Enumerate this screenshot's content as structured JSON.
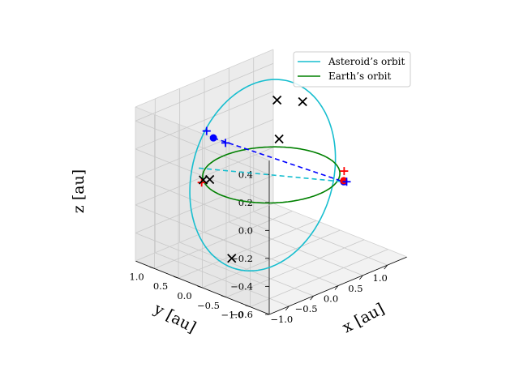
{
  "chart_data": {
    "type": "line3d",
    "title": "",
    "xlabel": "x [au]",
    "ylabel": "y [au]",
    "zlabel": "z [au]",
    "xlim": [
      -1.4,
      1.4
    ],
    "ylim": [
      -1.4,
      1.4
    ],
    "zlim": [
      -0.6,
      0.5
    ],
    "x_ticks": [
      -1.0,
      -0.5,
      0.0,
      0.5,
      1.0
    ],
    "x_tick_labels": [
      "−1.0",
      "−0.5",
      "0.0",
      "0.5",
      "1.0"
    ],
    "y_ticks": [
      -1.0,
      -0.5,
      0.0,
      0.5,
      1.0
    ],
    "y_tick_labels": [
      "−1.0",
      "−0.5",
      "0.0",
      "0.5",
      "1.0"
    ],
    "z_ticks": [
      -0.6,
      -0.4,
      -0.2,
      0.0,
      0.2,
      0.4
    ],
    "z_tick_labels": [
      "−0.6",
      "−0.4",
      "−0.2",
      "0.0",
      "0.2",
      "0.4"
    ],
    "grid": true,
    "legend_position": "top-right",
    "series": [
      {
        "name": "Asteroid’s orbit",
        "color": "#17becf",
        "kind": "ellipse",
        "a": 1.07,
        "e": 0.12,
        "inclination_deg": 28,
        "node_deg": -60,
        "periapsis_deg": 5
      },
      {
        "name": "Earth’s orbit",
        "color": "#008000",
        "kind": "circle",
        "radius": 1.0
      }
    ],
    "lines": [
      {
        "name": "asteroid-line-of-nodes",
        "color": "#17becf",
        "style": "dashed",
        "from": [
          -0.55,
          0.95,
          0.0
        ],
        "to": [
          0.55,
          -0.95,
          0.0
        ]
      },
      {
        "name": "blue-dashed-segment",
        "color": "#0000ff",
        "style": "dashed",
        "from": [
          -0.35,
          0.85,
          0.2
        ],
        "to": [
          0.55,
          -0.95,
          0.0
        ]
      }
    ],
    "markers": [
      {
        "symbol": "dot",
        "color": "#0000ff",
        "position": [
          -0.35,
          0.85,
          0.2
        ]
      },
      {
        "symbol": "dot",
        "color": "#0000ff",
        "position": [
          0.55,
          -0.95,
          0.0
        ]
      },
      {
        "symbol": "dot",
        "color": "#ff0000",
        "position": [
          0.58,
          -0.92,
          0.0
        ]
      },
      {
        "symbol": "plus",
        "color": "#0000ff",
        "position": [
          -0.42,
          0.92,
          0.25
        ]
      },
      {
        "symbol": "plus",
        "color": "#0000ff",
        "position": [
          -0.25,
          0.7,
          0.17
        ]
      },
      {
        "symbol": "plus",
        "color": "#0000ff",
        "position": [
          0.58,
          -0.98,
          0.0
        ]
      },
      {
        "symbol": "plus",
        "color": "#ff0000",
        "position": [
          -0.88,
          0.55,
          0.0
        ]
      },
      {
        "symbol": "plus",
        "color": "#ff0000",
        "position": [
          0.82,
          -0.68,
          0.0
        ]
      },
      {
        "symbol": "x",
        "color": "#000000",
        "position": [
          -0.8,
          0.6,
          0.0
        ]
      },
      {
        "symbol": "x",
        "color": "#000000",
        "position": [
          -0.55,
          0.72,
          -0.05
        ]
      },
      {
        "symbol": "x",
        "color": "#000000",
        "position": [
          0.45,
          0.3,
          0.15
        ]
      },
      {
        "symbol": "x",
        "color": "#000000",
        "position": [
          0.7,
          0.6,
          0.35
        ]
      },
      {
        "symbol": "x",
        "color": "#000000",
        "position": [
          0.88,
          0.25,
          0.36
        ]
      },
      {
        "symbol": "x",
        "color": "#000000",
        "position": [
          -0.9,
          -0.1,
          -0.45
        ]
      }
    ]
  }
}
